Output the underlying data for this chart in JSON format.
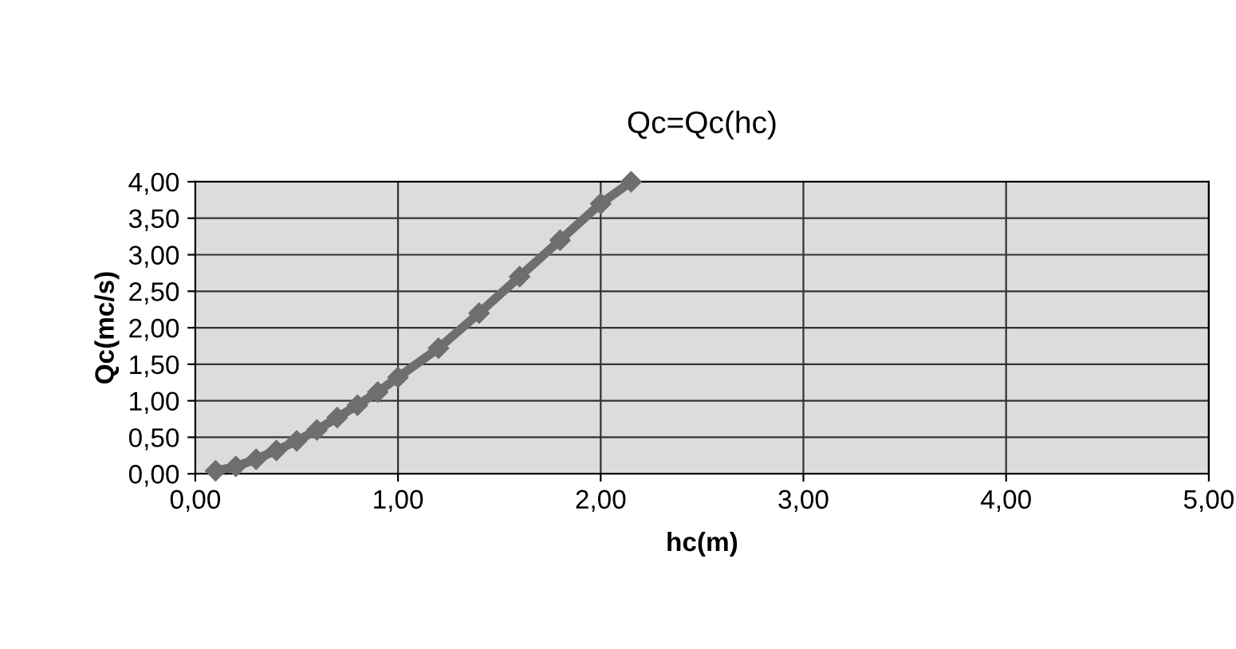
{
  "chart_data": {
    "type": "line",
    "title": "Qc=Qc(hc)",
    "xlabel": "hc(m)",
    "ylabel": "Qc(mc/s)",
    "x": [
      0.1,
      0.2,
      0.3,
      0.4,
      0.5,
      0.6,
      0.7,
      0.8,
      0.9,
      1.0,
      1.2,
      1.4,
      1.6,
      1.8,
      2.0,
      2.15
    ],
    "series": [
      {
        "color": "#6e6e6e",
        "values": [
          0.04,
          0.1,
          0.2,
          0.32,
          0.45,
          0.6,
          0.77,
          0.94,
          1.12,
          1.32,
          1.72,
          2.2,
          2.7,
          3.2,
          3.7,
          4.0
        ]
      }
    ],
    "xlim": [
      0,
      5
    ],
    "ylim": [
      0,
      4
    ],
    "xticks": [
      {
        "value": 0,
        "label": "0,00"
      },
      {
        "value": 1,
        "label": "1,00"
      },
      {
        "value": 2,
        "label": "2,00"
      },
      {
        "value": 3,
        "label": "3,00"
      },
      {
        "value": 4,
        "label": "4,00"
      },
      {
        "value": 5,
        "label": "5,00"
      }
    ],
    "yticks": [
      {
        "value": 0,
        "label": "0,00"
      },
      {
        "value": 0.5,
        "label": "0,50"
      },
      {
        "value": 1,
        "label": "1,00"
      },
      {
        "value": 1.5,
        "label": "1,50"
      },
      {
        "value": 2,
        "label": "2,00"
      },
      {
        "value": 2.5,
        "label": "2,50"
      },
      {
        "value": 3,
        "label": "3,00"
      },
      {
        "value": 3.5,
        "label": "3,50"
      },
      {
        "value": 4,
        "label": "4,00"
      }
    ],
    "grid": true,
    "marker": "diamond",
    "line_style": "solid"
  }
}
